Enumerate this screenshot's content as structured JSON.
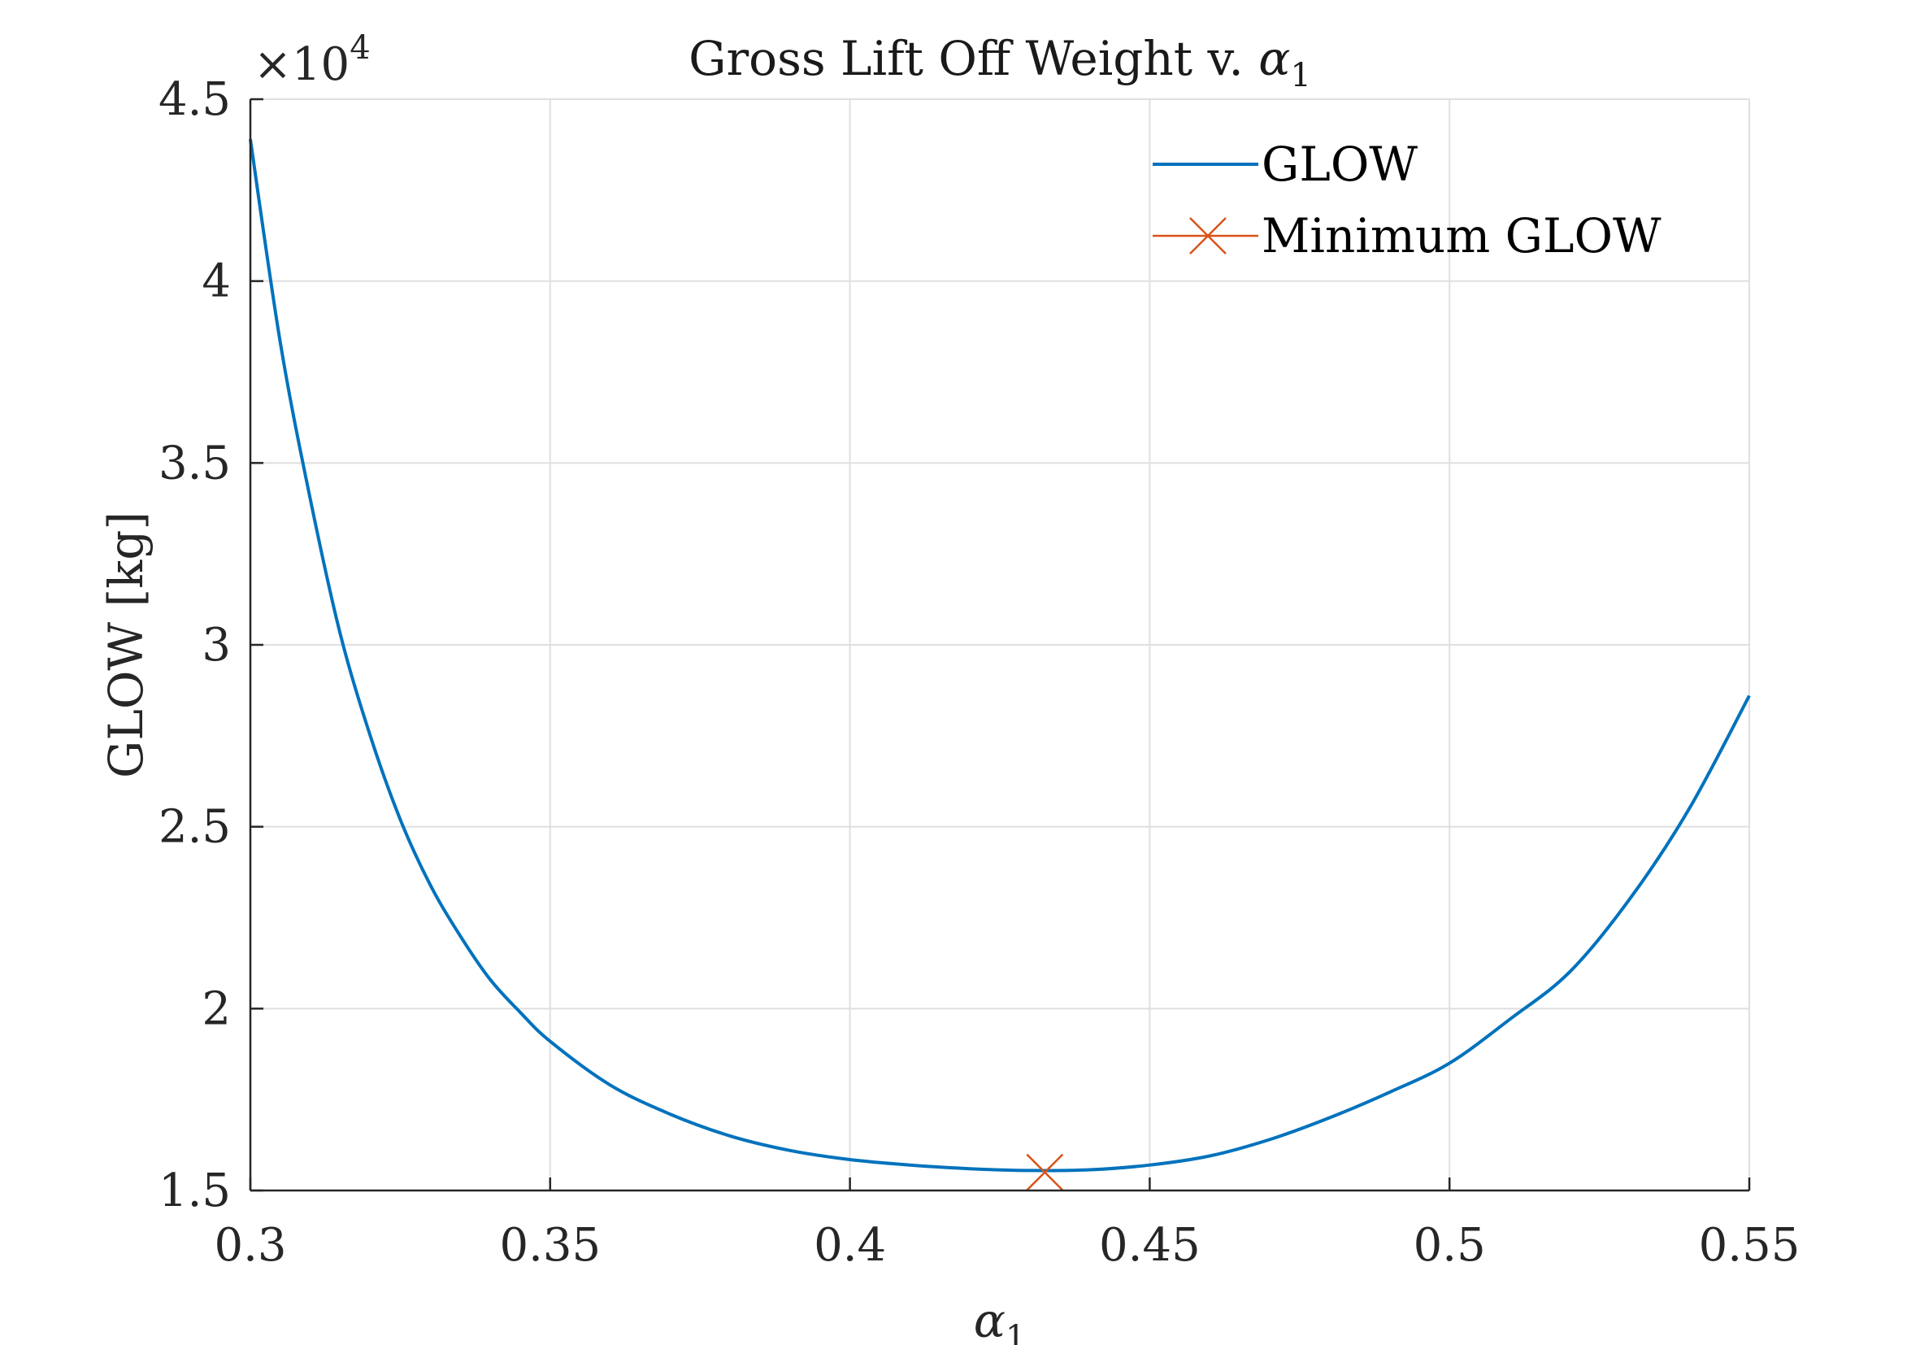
{
  "chart_data": {
    "type": "line",
    "title_main": "Gross Lift Off Weight v. ",
    "title_symbol": "α",
    "title_subscript": "1",
    "xlabel_symbol": "α",
    "xlabel_subscript": "1",
    "ylabel": "GLOW [kg]",
    "exponent_prefix": "×10",
    "exponent_power": "4",
    "xlim": [
      0.3,
      0.55
    ],
    "ylim": [
      15000,
      45000
    ],
    "grid": true,
    "legend_position": "top-right",
    "x_ticks": [
      0.3,
      0.35,
      0.4,
      0.45,
      0.5,
      0.55
    ],
    "x_tick_labels": [
      "0.3",
      "0.35",
      "0.4",
      "0.45",
      "0.5",
      "0.55"
    ],
    "y_ticks": [
      15000,
      20000,
      25000,
      30000,
      35000,
      40000,
      45000
    ],
    "y_tick_labels": [
      "1.5",
      "2",
      "2.5",
      "3",
      "3.5",
      "4",
      "4.5"
    ],
    "series": [
      {
        "name": "GLOW",
        "color": "#0072BD",
        "style": "line",
        "x": [
          0.3,
          0.305,
          0.31,
          0.315,
          0.32,
          0.325,
          0.33,
          0.335,
          0.34,
          0.345,
          0.35,
          0.36,
          0.37,
          0.38,
          0.39,
          0.4,
          0.41,
          0.42,
          0.43,
          0.44,
          0.45,
          0.46,
          0.47,
          0.48,
          0.49,
          0.5,
          0.51,
          0.52,
          0.53,
          0.54,
          0.55
        ],
        "y": [
          43900,
          38300,
          34000,
          30300,
          27500,
          25200,
          23400,
          22000,
          20800,
          19900,
          19100,
          17900,
          17100,
          16500,
          16100,
          15850,
          15700,
          15600,
          15550,
          15570,
          15700,
          15950,
          16400,
          17000,
          17700,
          18500,
          19700,
          21000,
          23000,
          25500,
          28600
        ]
      },
      {
        "name": "Minimum GLOW",
        "color": "#D95319",
        "style": "marker-x",
        "x": [
          0.4325
        ],
        "y": [
          15500
        ]
      }
    ]
  }
}
